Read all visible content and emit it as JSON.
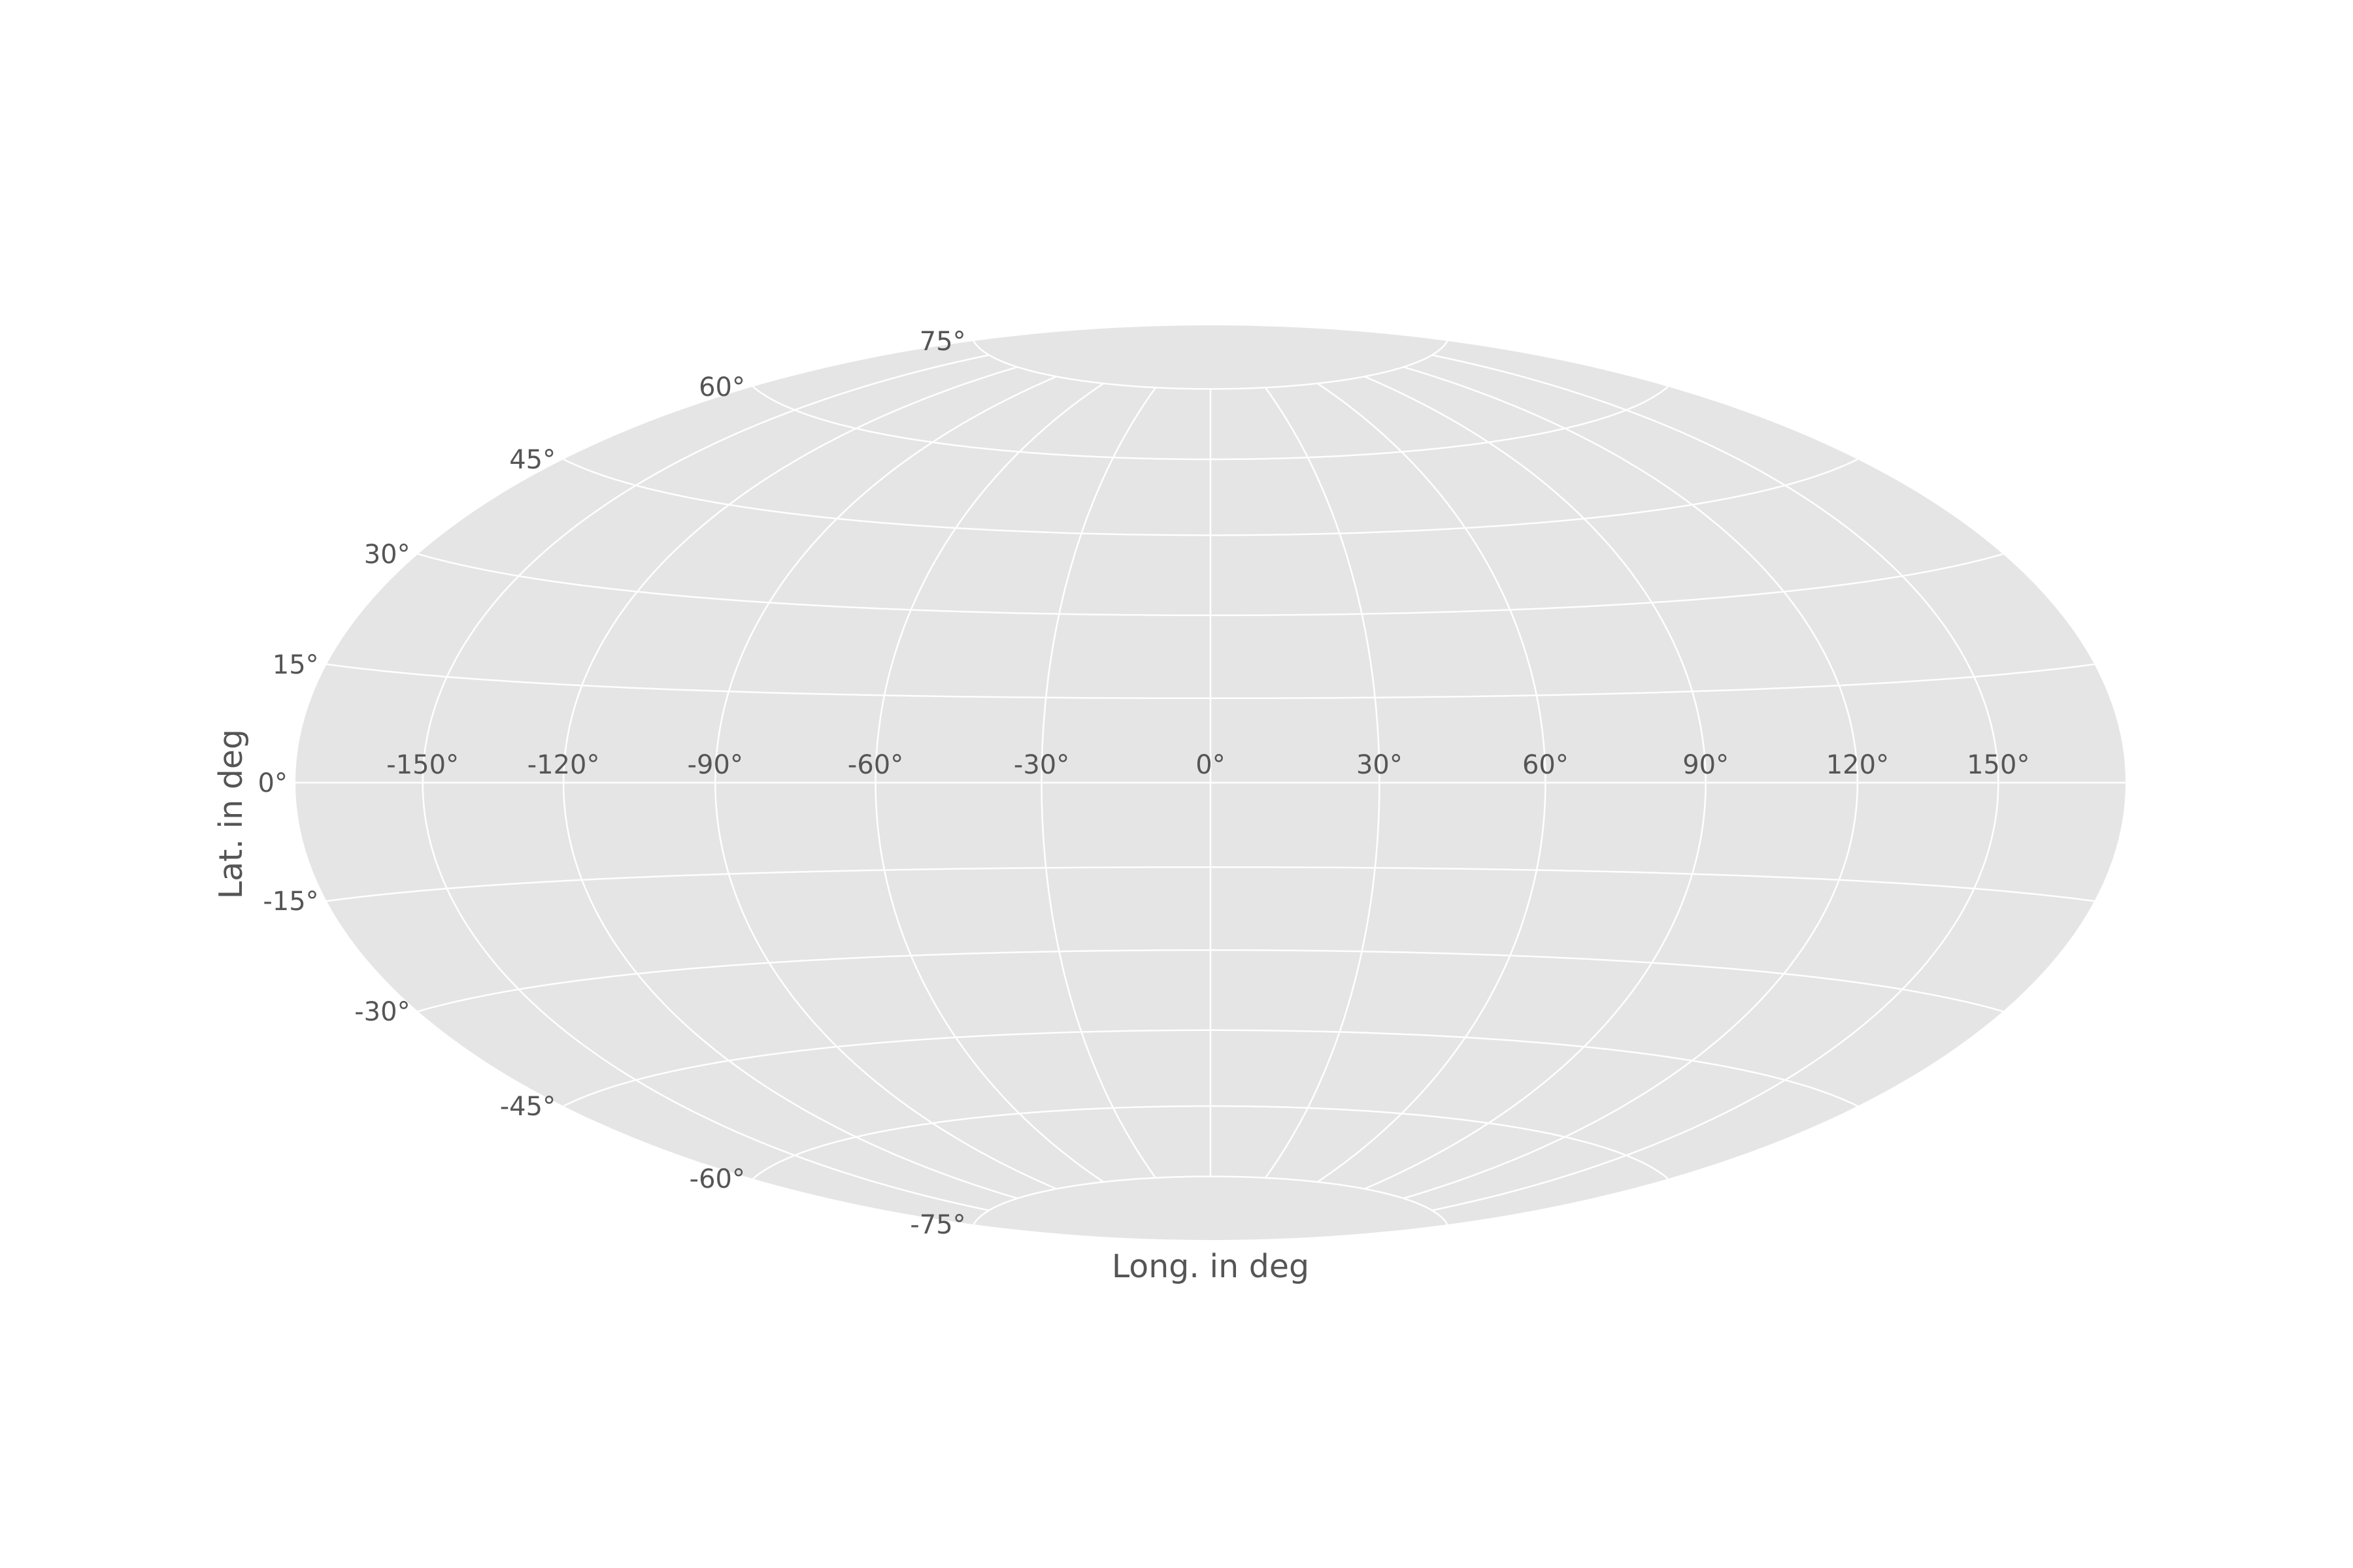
{
  "chart_data": {
    "type": "map",
    "projection": "hammer",
    "title": "",
    "xlabel": "Long. in deg",
    "ylabel": "Lat. in deg",
    "grid": true,
    "background_color": "#e5e5e5",
    "grid_color": "#ffffff",
    "text_color": "#555555",
    "xlim": [
      -180,
      180
    ],
    "ylim": [
      -90,
      90
    ],
    "longitude_ticks": [
      {
        "value": -150,
        "label": "-150°"
      },
      {
        "value": -120,
        "label": "-120°"
      },
      {
        "value": -90,
        "label": "-90°"
      },
      {
        "value": -60,
        "label": "-60°"
      },
      {
        "value": -30,
        "label": "-30°"
      },
      {
        "value": 0,
        "label": "0°"
      },
      {
        "value": 30,
        "label": "30°"
      },
      {
        "value": 60,
        "label": "60°"
      },
      {
        "value": 90,
        "label": "90°"
      },
      {
        "value": 120,
        "label": "120°"
      },
      {
        "value": 150,
        "label": "150°"
      }
    ],
    "latitude_ticks": [
      {
        "value": 75,
        "label": "75°"
      },
      {
        "value": 60,
        "label": "60°"
      },
      {
        "value": 45,
        "label": "45°"
      },
      {
        "value": 30,
        "label": "30°"
      },
      {
        "value": 15,
        "label": "15°"
      },
      {
        "value": 0,
        "label": "0°"
      },
      {
        "value": -15,
        "label": "-15°"
      },
      {
        "value": -30,
        "label": "-30°"
      },
      {
        "value": -45,
        "label": "-45°"
      },
      {
        "value": -60,
        "label": "-60°"
      },
      {
        "value": -75,
        "label": "-75°"
      }
    ],
    "series": []
  }
}
